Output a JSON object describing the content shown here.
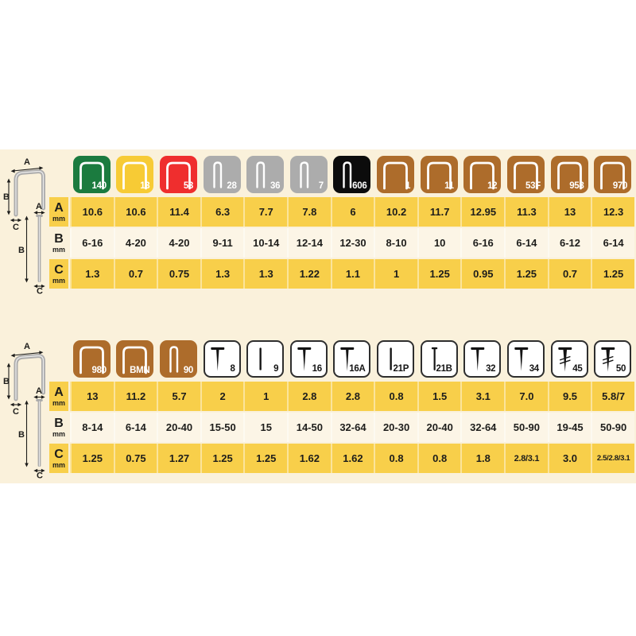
{
  "page": {
    "background": "#FFFFFF",
    "band_color": "#FAF1DB",
    "yellow_row_color": "#F8CF4A",
    "cream_row_color": "#FCF5E6",
    "text_color": "#1d1d1b"
  },
  "diagram_labels": {
    "a": "A",
    "b": "B",
    "c": "C"
  },
  "row_labels": [
    {
      "letter": "A",
      "unit": "mm"
    },
    {
      "letter": "B",
      "unit": "mm"
    },
    {
      "letter": "C",
      "unit": "mm"
    }
  ],
  "chart_data": [
    {
      "type": "table",
      "description": "Staple sizes: A = crown width (mm), B = leg length range (mm), C = wire thickness (mm)",
      "row_headers": [
        "A mm",
        "B mm",
        "C mm"
      ],
      "columns": [
        {
          "label": "140",
          "glyph": "staple-wide",
          "color": "#1B7B3F",
          "fg": "#FFFFFF"
        },
        {
          "label": "13",
          "glyph": "staple-wide",
          "color": "#F7CB35",
          "fg": "#FFFFFF"
        },
        {
          "label": "53",
          "glyph": "staple-wide",
          "color": "#EF2E2E",
          "fg": "#FFFFFF"
        },
        {
          "label": "28",
          "glyph": "staple-narrow",
          "color": "#ACACAC",
          "fg": "#FFFFFF"
        },
        {
          "label": "36",
          "glyph": "staple-narrow",
          "color": "#ACACAC",
          "fg": "#FFFFFF"
        },
        {
          "label": "7",
          "glyph": "staple-narrow",
          "color": "#ACACAC",
          "fg": "#FFFFFF"
        },
        {
          "label": "606",
          "glyph": "staple-narrow",
          "color": "#0C0C0C",
          "fg": "#FFFFFF"
        },
        {
          "label": "1",
          "glyph": "staple-wide",
          "color": "#AD6C2B",
          "fg": "#FFFFFF"
        },
        {
          "label": "11",
          "glyph": "staple-wide",
          "color": "#AD6C2B",
          "fg": "#FFFFFF"
        },
        {
          "label": "12",
          "glyph": "staple-wide",
          "color": "#AD6C2B",
          "fg": "#FFFFFF"
        },
        {
          "label": "53F",
          "glyph": "staple-wide",
          "color": "#AD6C2B",
          "fg": "#FFFFFF"
        },
        {
          "label": "958",
          "glyph": "staple-wide",
          "color": "#AD6C2B",
          "fg": "#FFFFFF"
        },
        {
          "label": "970",
          "glyph": "staple-wide",
          "color": "#AD6C2B",
          "fg": "#FFFFFF"
        }
      ],
      "rows": {
        "A": [
          "10.6",
          "10.6",
          "11.4",
          "6.3",
          "7.7",
          "7.8",
          "6",
          "10.2",
          "11.7",
          "12.95",
          "11.3",
          "13",
          "12.3"
        ],
        "B": [
          "6-16",
          "4-20",
          "4-20",
          "9-11",
          "10-14",
          "12-14",
          "12-30",
          "8-10",
          "10",
          "6-16",
          "6-14",
          "6-12",
          "6-14"
        ],
        "C": [
          "1.3",
          "0.7",
          "0.75",
          "1.3",
          "1.3",
          "1.22",
          "1.1",
          "1",
          "1.25",
          "0.95",
          "1.25",
          "0.7",
          "1.25"
        ]
      }
    },
    {
      "type": "table",
      "description": "Staple, brad and nail sizes: A = crown width / head (mm), B = length range (mm), C = wire thickness (mm)",
      "row_headers": [
        "A mm",
        "B mm",
        "C mm"
      ],
      "columns": [
        {
          "label": "980",
          "glyph": "staple-wide",
          "color": "#AD6C2B",
          "fg": "#FFFFFF"
        },
        {
          "label": "BMN",
          "glyph": "staple-wide",
          "color": "#AD6C2B",
          "fg": "#FFFFFF"
        },
        {
          "label": "90",
          "glyph": "staple-narrow",
          "color": "#AD6C2B",
          "fg": "#FFFFFF"
        },
        {
          "label": "8",
          "glyph": "nail",
          "color": "#FFFFFF",
          "fg": "#141414"
        },
        {
          "label": "9",
          "glyph": "pin",
          "color": "#FFFFFF",
          "fg": "#141414"
        },
        {
          "label": "16",
          "glyph": "nail",
          "color": "#FFFFFF",
          "fg": "#141414"
        },
        {
          "label": "16A",
          "glyph": "nail",
          "color": "#FFFFFF",
          "fg": "#141414"
        },
        {
          "label": "21P",
          "glyph": "pin",
          "color": "#FFFFFF",
          "fg": "#141414"
        },
        {
          "label": "21B",
          "glyph": "brad",
          "color": "#FFFFFF",
          "fg": "#141414"
        },
        {
          "label": "32",
          "glyph": "nail",
          "color": "#FFFFFF",
          "fg": "#141414"
        },
        {
          "label": "34",
          "glyph": "nail",
          "color": "#FFFFFF",
          "fg": "#141414"
        },
        {
          "label": "45",
          "glyph": "nail-hatch",
          "color": "#FFFFFF",
          "fg": "#141414"
        },
        {
          "label": "50",
          "glyph": "nail-hatch",
          "color": "#FFFFFF",
          "fg": "#141414"
        }
      ],
      "rows": {
        "A": [
          "13",
          "11.2",
          "5.7",
          "2",
          "1",
          "2.8",
          "2.8",
          "0.8",
          "1.5",
          "3.1",
          "7.0",
          "9.5",
          "5.8/7"
        ],
        "B": [
          "8-14",
          "6-14",
          "20-40",
          "15-50",
          "15",
          "14-50",
          "32-64",
          "20-30",
          "20-40",
          "32-64",
          "50-90",
          "19-45",
          "50-90"
        ],
        "C": [
          "1.25",
          "0.75",
          "1.27",
          "1.25",
          "1.25",
          "1.62",
          "1.62",
          "0.8",
          "0.8",
          "1.8",
          "2.8/3.1",
          "3.0",
          "2.5/2.8/3.1"
        ]
      }
    }
  ]
}
